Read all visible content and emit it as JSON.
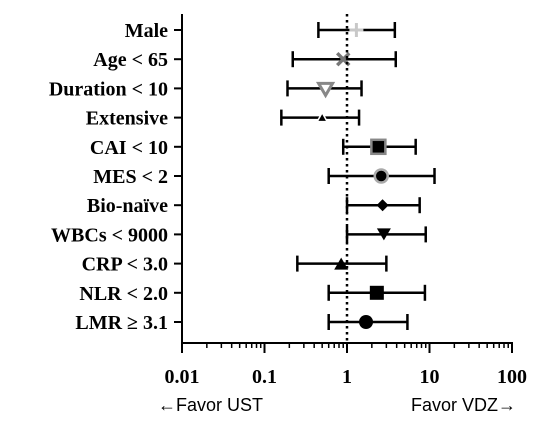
{
  "chart_data": {
    "type": "forest",
    "xscale": "log",
    "xlim": [
      0.01,
      100
    ],
    "reference_line": 1,
    "x_ticks": [
      "0.01",
      "0.1",
      "1",
      "10",
      "100"
    ],
    "x_tick_values": [
      0.01,
      0.1,
      1,
      10,
      100
    ],
    "left_note": "←Favor UST",
    "right_note": "Favor VDZ→",
    "rows": [
      {
        "label": "Male",
        "estimate": 1.3,
        "lower": 0.45,
        "upper": 3.8,
        "marker": "plus",
        "color": "#c8c8c8"
      },
      {
        "label": "Age < 65",
        "estimate": 0.9,
        "lower": 0.22,
        "upper": 3.9,
        "marker": "cross",
        "color": "#777777"
      },
      {
        "label": "Duration < 10",
        "estimate": 0.55,
        "lower": 0.19,
        "upper": 1.5,
        "marker": "triangle-down-outline",
        "color": "#888888"
      },
      {
        "label": "Extensive",
        "estimate": 0.5,
        "lower": 0.16,
        "upper": 1.4,
        "marker": "triangle-up-outline",
        "color": "#000000"
      },
      {
        "label": "CAI < 10",
        "estimate": 2.4,
        "lower": 0.9,
        "upper": 6.8,
        "marker": "square-outline",
        "color": "#888888"
      },
      {
        "label": "MES < 2",
        "estimate": 2.6,
        "lower": 0.6,
        "upper": 11.5,
        "marker": "circle-outline",
        "color": "#aaaaaa"
      },
      {
        "label": "Bio-naïve",
        "estimate": 2.7,
        "lower": 1.0,
        "upper": 7.6,
        "marker": "diamond",
        "color": "#000000"
      },
      {
        "label": "WBCs < 9000",
        "estimate": 2.8,
        "lower": 1.0,
        "upper": 9.0,
        "marker": "triangle-down",
        "color": "#000000"
      },
      {
        "label": "CRP < 3.0",
        "estimate": 0.85,
        "lower": 0.25,
        "upper": 3.0,
        "marker": "triangle-up",
        "color": "#000000"
      },
      {
        "label": "NLR < 2.0",
        "estimate": 2.3,
        "lower": 0.6,
        "upper": 8.8,
        "marker": "square",
        "color": "#000000"
      },
      {
        "label": "LMR ≥ 3.1",
        "estimate": 1.7,
        "lower": 0.6,
        "upper": 5.4,
        "marker": "circle",
        "color": "#000000"
      }
    ]
  }
}
